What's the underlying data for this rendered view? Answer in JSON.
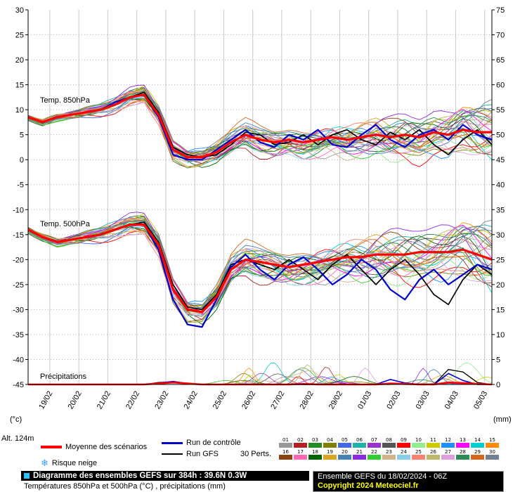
{
  "chart_data": {
    "type": "line",
    "title": "Diagramme des ensembles GEFS sur 384h : 39.6N 0.3W",
    "subtitle": "Températures 850hPa et 500hPa (°C) , précipitations (mm)",
    "x_total_hours": 384,
    "x_tick_labels": [
      "19/02",
      "20/02",
      "21/02",
      "22/02",
      "23/02",
      "24/02",
      "25/02",
      "26/02",
      "27/02",
      "28/02",
      "29/02",
      "01/03",
      "02/03",
      "03/03",
      "04/03",
      "05/03"
    ],
    "x_tick_hours": [
      18,
      42,
      66,
      90,
      114,
      138,
      162,
      186,
      210,
      234,
      258,
      282,
      306,
      330,
      354,
      378
    ],
    "left_axis": {
      "label": "(°c)",
      "min": -45,
      "max": 30,
      "step": 5
    },
    "right_axis": {
      "label": "(mm)",
      "min": 0,
      "max": 75,
      "step": 5
    },
    "panel_labels": {
      "t850": "Temp. 850hPa",
      "t500": "Temp. 500hPa",
      "precip": "Précipitations"
    },
    "series": {
      "mean_850": [
        8.5,
        7.5,
        8.5,
        9,
        9.5,
        10,
        11,
        12.5,
        13,
        9,
        2,
        0.5,
        0.5,
        1.5,
        3.5,
        5,
        4,
        3.5,
        4,
        3.5,
        4,
        4.5,
        4,
        4.5,
        5,
        4.5,
        5,
        4.5,
        5.5,
        5,
        6,
        5.5,
        5.5
      ],
      "control_850": [
        8.5,
        7.5,
        8.5,
        9,
        9.5,
        10,
        11.5,
        12.5,
        13,
        8.5,
        1,
        0,
        0,
        2,
        4,
        6,
        3.5,
        2.5,
        5,
        4,
        6,
        3,
        2.5,
        5,
        7,
        4,
        2.5,
        5,
        6,
        4,
        7,
        5,
        4
      ],
      "gfs_850": [
        8.5,
        7.5,
        8.5,
        9,
        9.5,
        10,
        11,
        12.5,
        13.5,
        9.5,
        2.5,
        1,
        0.5,
        1,
        3,
        5.5,
        5,
        3,
        3.5,
        5,
        3,
        5,
        6,
        4,
        3,
        5.5,
        4,
        6,
        3,
        1,
        4,
        6,
        3
      ],
      "mean_500": [
        -14,
        -15.5,
        -16.5,
        -16,
        -15.5,
        -15,
        -14,
        -13,
        -13,
        -17,
        -26,
        -30,
        -30.5,
        -27.5,
        -22,
        -20,
        -20.5,
        -21,
        -21.5,
        -21,
        -20.5,
        -20,
        -19.5,
        -19.5,
        -19,
        -19,
        -19,
        -18.5,
        -18.5,
        -18.5,
        -18,
        -19,
        -20
      ],
      "control_500": [
        -14,
        -15.5,
        -16.5,
        -16,
        -15.5,
        -15,
        -14,
        -13,
        -13,
        -18,
        -28,
        -33,
        -33.5,
        -28,
        -21.5,
        -19,
        -22,
        -24,
        -21,
        -19.5,
        -22,
        -25,
        -23,
        -20,
        -22,
        -26,
        -28,
        -24,
        -22,
        -25,
        -23,
        -21,
        -22
      ],
      "gfs_500": [
        -14,
        -15.5,
        -16.5,
        -16,
        -15.5,
        -15,
        -14,
        -13,
        -12.5,
        -16.5,
        -25,
        -29.5,
        -30,
        -27,
        -21,
        -20,
        -21,
        -22,
        -20,
        -22,
        -24,
        -21,
        -19,
        -22,
        -25,
        -22,
        -20,
        -23,
        -27,
        -29,
        -24,
        -21,
        -23
      ],
      "mean_precip": [
        0,
        0,
        0,
        0,
        0,
        0,
        0,
        0,
        0,
        0.2,
        0.4,
        0.2,
        0,
        0,
        0,
        0,
        0,
        0,
        0,
        0.1,
        0,
        0,
        0,
        0,
        0,
        0.2,
        0.1,
        0,
        0,
        0.4,
        0.3,
        0.1,
        0
      ],
      "control_precip": [
        0,
        0,
        0,
        0,
        0,
        0,
        0,
        0,
        0,
        0.3,
        0.6,
        0.2,
        0,
        0,
        0,
        0,
        0,
        0,
        0,
        0,
        0,
        0,
        0,
        0,
        0,
        1.0,
        0.3,
        0,
        0,
        2.2,
        0.8,
        0,
        0
      ],
      "gfs_precip": [
        0,
        0,
        0,
        0,
        0,
        0,
        0,
        0,
        0,
        0.4,
        0.5,
        0.2,
        0,
        0,
        0,
        0,
        0,
        0,
        0,
        0,
        0,
        0,
        0,
        0,
        0,
        0,
        0.3,
        0,
        0,
        3.0,
        2.5,
        0.4,
        0
      ]
    },
    "ensemble": {
      "count": 30,
      "spread_850": [
        0.7,
        5.0
      ],
      "spread_500": [
        0.8,
        6.0
      ],
      "colors": [
        "#999999",
        "#b22222",
        "#228b22",
        "#808000",
        "#4169e1",
        "#20b2aa",
        "#9932cc",
        "#555555",
        "#ff0000",
        "#90ee90",
        "#cccc00",
        "#1e90ff",
        "#ff00ff",
        "#00ced1",
        "#ff8c00",
        "#8b4513",
        "#ff69b4",
        "#006400",
        "#daa520",
        "#4682b4",
        "#8a2be2",
        "#32cd32",
        "#d2b48c",
        "#87ceeb",
        "#fa8072",
        "#bdb76b",
        "#dda0dd",
        "#2e8b57",
        "#d2691e",
        "#708090"
      ]
    },
    "colors": {
      "mean": "#ff0000",
      "control": "#0000cc",
      "gfs": "#000000",
      "grid": "#c8c8c8"
    }
  },
  "legend": {
    "mean_label": "Moyenne des scénarios",
    "control_label": "Run de contrôle",
    "gfs_label": "Run GFS",
    "perts_label": "30 Perts.",
    "snow_label": "Risque neige",
    "snow_icon": "❄",
    "member_numbers": [
      "01",
      "02",
      "03",
      "04",
      "05",
      "06",
      "07",
      "08",
      "09",
      "10",
      "11",
      "12",
      "13",
      "14",
      "15",
      "16",
      "17",
      "18",
      "19",
      "20",
      "21",
      "22",
      "23",
      "24",
      "25",
      "26",
      "27",
      "28",
      "29",
      "30"
    ]
  },
  "footer": {
    "title": "Diagramme des ensembles GEFS sur 384h : 39.6N 0.3W",
    "subtitle": "Températures 850hPa et 500hPa (°C) , précipitations (mm)",
    "run_info": "Ensemble GEFS du 18/02/2024 - 06Z",
    "copyright": "Copyright 2024 Meteociel.fr",
    "alt_label": "Alt. 124m",
    "left_unit": "(°c)",
    "right_unit": "(mm)"
  }
}
